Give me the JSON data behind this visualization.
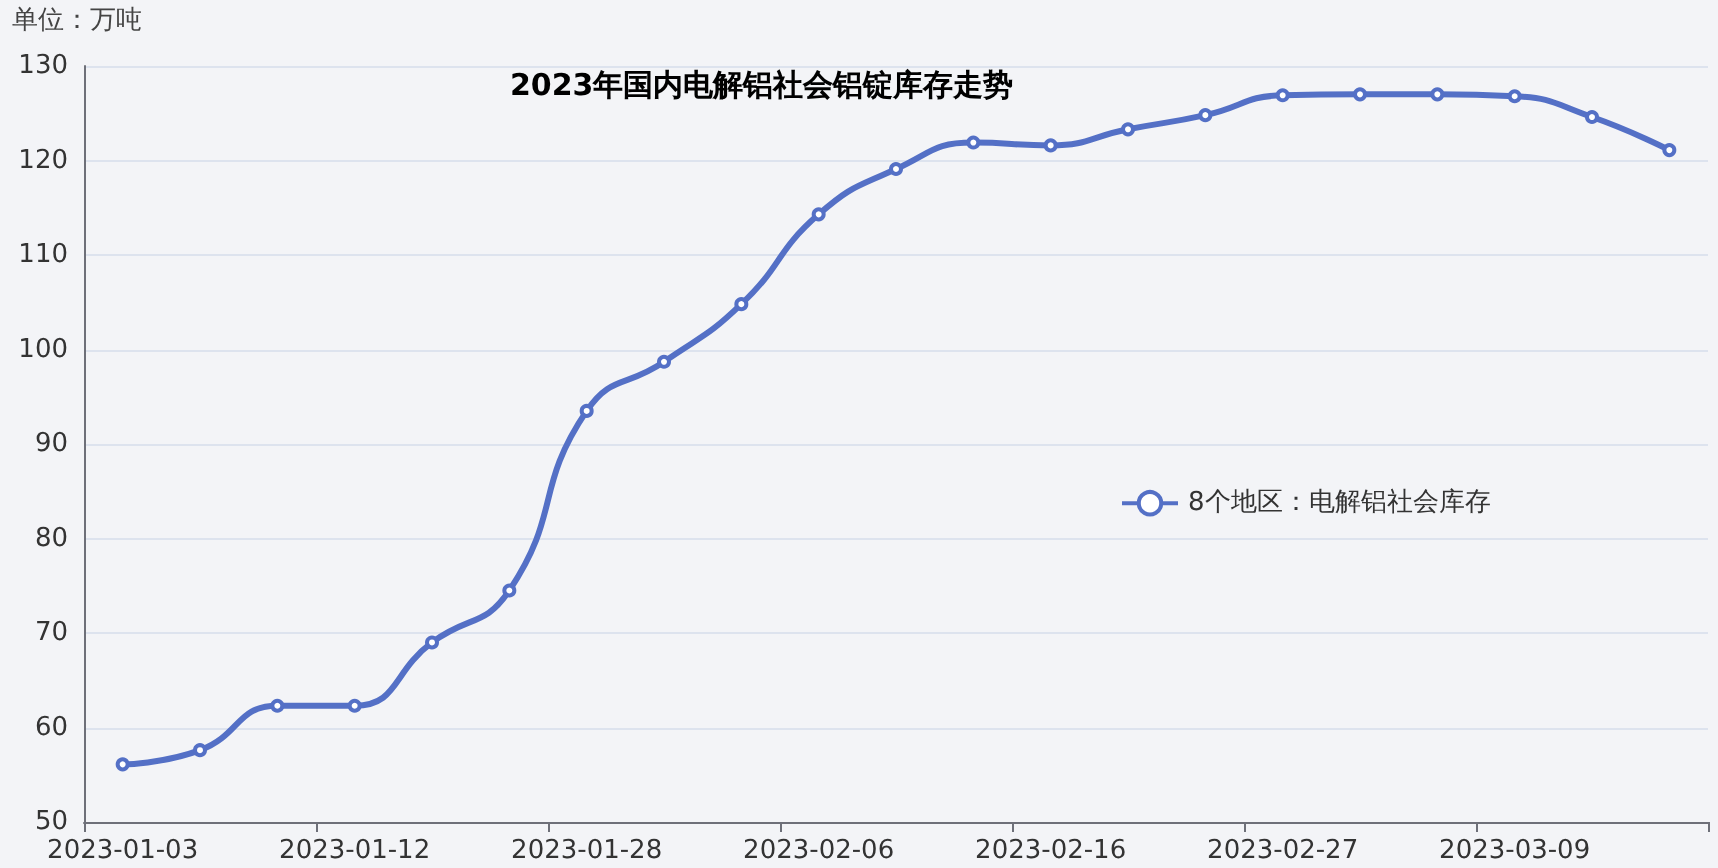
{
  "chart_data": {
    "type": "line",
    "title": "2023年国内电解铝社会铝锭库存走势",
    "ylabel": "单位：万吨",
    "categories": [
      "2023-01-03",
      null,
      null,
      "2023-01-12",
      null,
      null,
      "2023-01-28",
      null,
      null,
      "2023-02-06",
      null,
      null,
      "2023-02-16",
      null,
      null,
      "2023-02-27",
      null,
      null,
      "2023-03-09",
      null,
      null
    ],
    "series": [
      {
        "name": "8个地区：电解铝社会库存",
        "color": "#5470c6",
        "values": [
          56.1,
          57.6,
          62.3,
          62.3,
          69.0,
          74.5,
          93.5,
          98.7,
          104.8,
          114.3,
          119.1,
          121.9,
          121.6,
          123.3,
          124.8,
          126.9,
          127.0,
          127.0,
          126.8,
          124.6,
          121.1
        ]
      }
    ],
    "ylim": [
      50,
      130
    ],
    "yticks": [
      50,
      60,
      70,
      80,
      90,
      100,
      110,
      120,
      130
    ],
    "grid": "y",
    "legend": "right",
    "marker": "circle",
    "line_style": "solid"
  }
}
